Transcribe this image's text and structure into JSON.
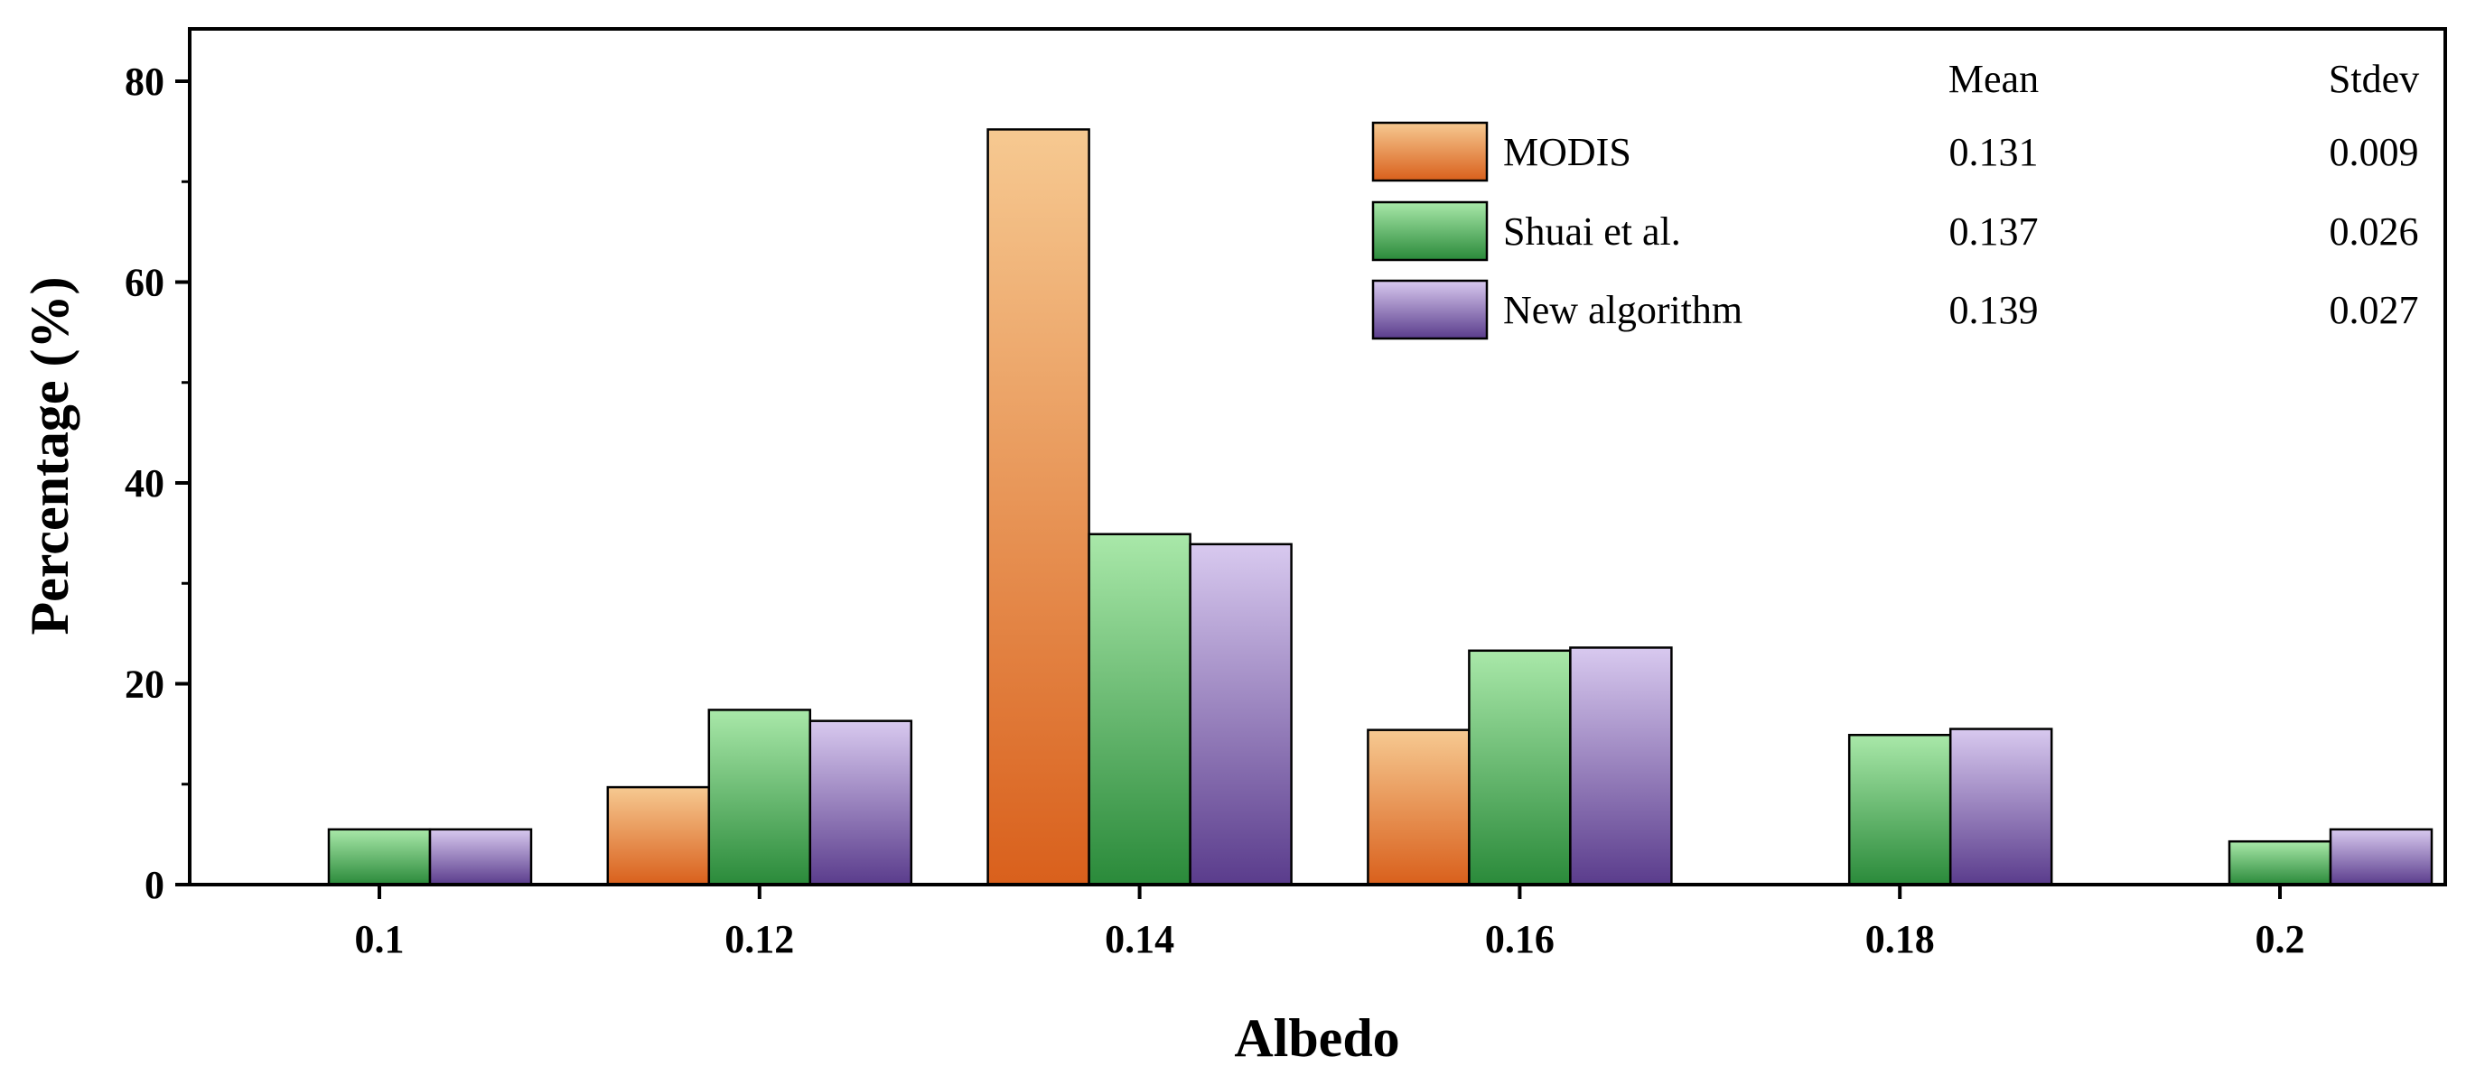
{
  "chart_data": {
    "type": "bar",
    "xlabel": "Albedo",
    "ylabel": "Percentage (%)",
    "ylim": [
      0,
      84
    ],
    "yticks": [
      0,
      20,
      40,
      60,
      80
    ],
    "categories": [
      "0.1",
      "0.12",
      "0.14",
      "0.16",
      "0.18",
      "0.2"
    ],
    "series": [
      {
        "name": "MODIS",
        "values": [
          0,
          9.7,
          75.2,
          15.4,
          0,
          0
        ],
        "color_top": "#f6c991",
        "color_bottom": "#d9601c",
        "mean": "0.131",
        "stdev": "0.009"
      },
      {
        "name": "Shuai et al.",
        "values": [
          5.5,
          17.4,
          34.9,
          23.3,
          14.9,
          4.3
        ],
        "color_top": "#a9e8a9",
        "color_bottom": "#2a8a3a",
        "mean": "0.137",
        "stdev": "0.026"
      },
      {
        "name": "New algorithm",
        "values": [
          5.5,
          16.3,
          33.9,
          23.6,
          15.5,
          5.5
        ],
        "color_top": "#d8c9ef",
        "color_bottom": "#5a3c8c",
        "mean": "0.139",
        "stdev": "0.027"
      }
    ],
    "stats_headers": {
      "mean": "Mean",
      "stdev": "Stdev"
    },
    "legend_position": "top-right",
    "grid": false
  }
}
